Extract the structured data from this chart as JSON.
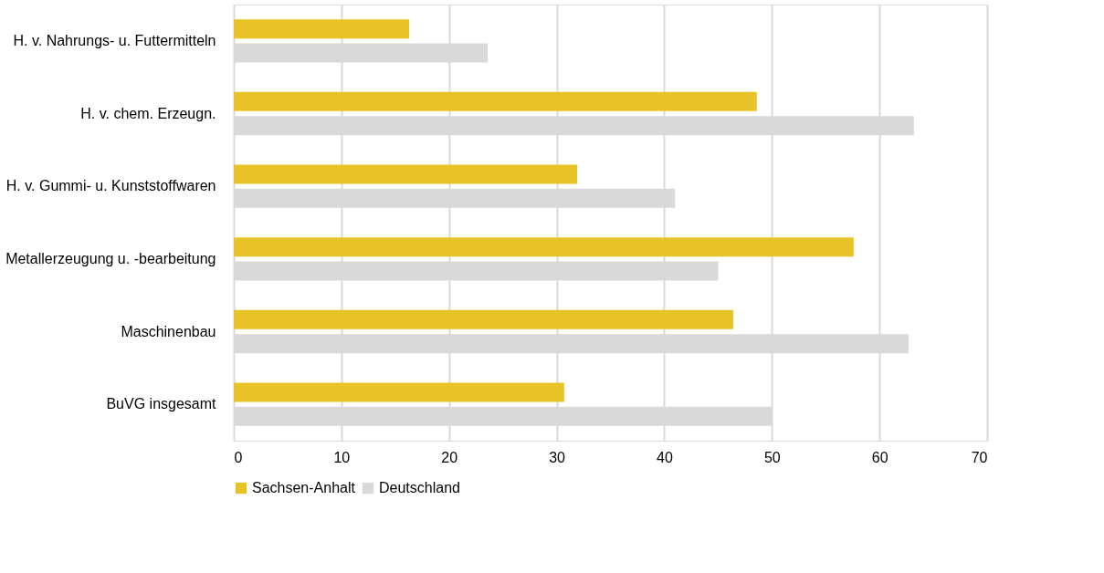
{
  "chart_data": {
    "type": "bar",
    "orientation": "horizontal",
    "categories": [
      "H. v. Nahrungs- u. Futtermitteln",
      "H. v. chem. Erzeugn.",
      "H. v. Gummi- u. Kunststoffwaren",
      "Metallerzeugung u. -bearbeitung",
      "Maschinenbau",
      "BuVG insgesamt"
    ],
    "series": [
      {
        "name": "Sachsen-Anhalt",
        "color": "#e8c327",
        "values": [
          16.3,
          48.6,
          31.9,
          57.6,
          46.4,
          30.7
        ]
      },
      {
        "name": "Deutschland",
        "color": "#d9d9d9",
        "values": [
          23.6,
          63.2,
          41.0,
          45.0,
          62.7,
          50.0
        ]
      }
    ],
    "xlim": [
      0,
      70
    ],
    "xticks": [
      0,
      10,
      20,
      30,
      40,
      50,
      60,
      70
    ],
    "grid": "x",
    "legend": "bottom"
  }
}
